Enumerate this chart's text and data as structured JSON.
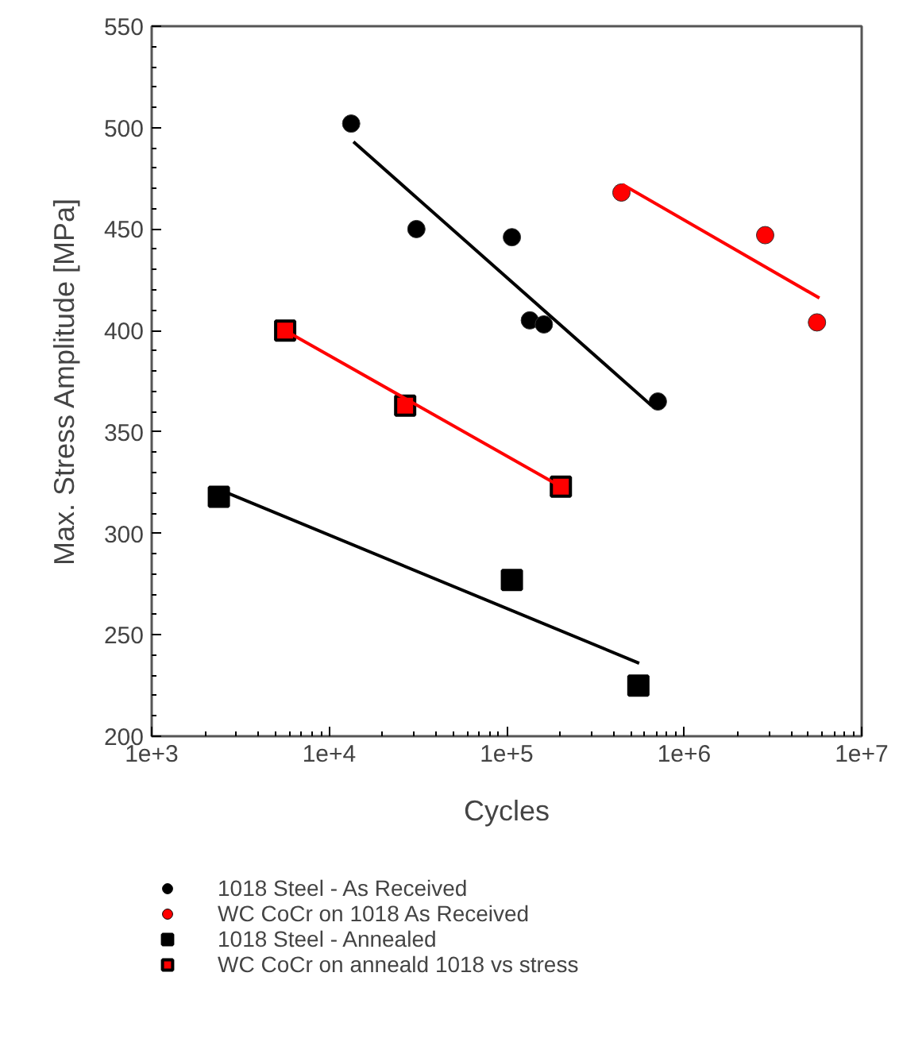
{
  "chart_data": {
    "type": "scatter",
    "xlabel": "Cycles",
    "ylabel": "Max. Stress Amplitude [MPa]",
    "log": "x",
    "xlim": [
      1000,
      10000000
    ],
    "ylim": [
      200,
      550
    ],
    "xticks": [
      {
        "value": 1000,
        "label": "1e+3"
      },
      {
        "value": 10000,
        "label": "1e+4"
      },
      {
        "value": 100000,
        "label": "1e+5"
      },
      {
        "value": 1000000,
        "label": "1e+6"
      },
      {
        "value": 10000000,
        "label": "1e+7"
      }
    ],
    "yticks": [
      200,
      250,
      300,
      350,
      400,
      450,
      500,
      550
    ],
    "grid": false,
    "legend": "bottom",
    "series": [
      {
        "name": "1018 Steel - As Received",
        "marker": "circle",
        "color": "#000000",
        "x": [
          13300,
          31000,
          107000,
          135000,
          162000,
          711000
        ],
        "values": [
          502,
          450,
          446,
          405,
          403,
          365
        ]
      },
      {
        "name": "WC CoCr on 1018 As Received",
        "marker": "circle",
        "color": "#ff0000",
        "x": [
          443000,
          2860000,
          5600000
        ],
        "values": [
          468,
          447,
          404
        ]
      },
      {
        "name": "1018 Steel - Annealed",
        "marker": "square",
        "color": "#000000",
        "x": [
          2390,
          107000,
          552000
        ],
        "values": [
          318,
          277,
          225
        ]
      },
      {
        "name": "WC CoCr on anneald 1018 vs stress",
        "marker": "square",
        "color": "#ff0000",
        "x": [
          5650,
          26800,
          202000
        ],
        "values": [
          400,
          363,
          323
        ]
      },
      {
        "type": "line",
        "line_style": "solid",
        "color": "#000000",
        "x": [
          13700,
          655000
        ],
        "values": [
          493,
          363
        ]
      },
      {
        "type": "line",
        "line_style": "solid",
        "color": "#ff0000",
        "x": [
          449000,
          5780000
        ],
        "values": [
          472,
          416
        ]
      },
      {
        "type": "line",
        "line_style": "solid",
        "color": "#ff0000",
        "x": [
          5650,
          202000
        ],
        "values": [
          400,
          323
        ]
      },
      {
        "type": "line",
        "line_style": "solid",
        "color": "#000000",
        "x": [
          2340,
          558000
        ],
        "values": [
          322,
          236
        ]
      }
    ]
  }
}
